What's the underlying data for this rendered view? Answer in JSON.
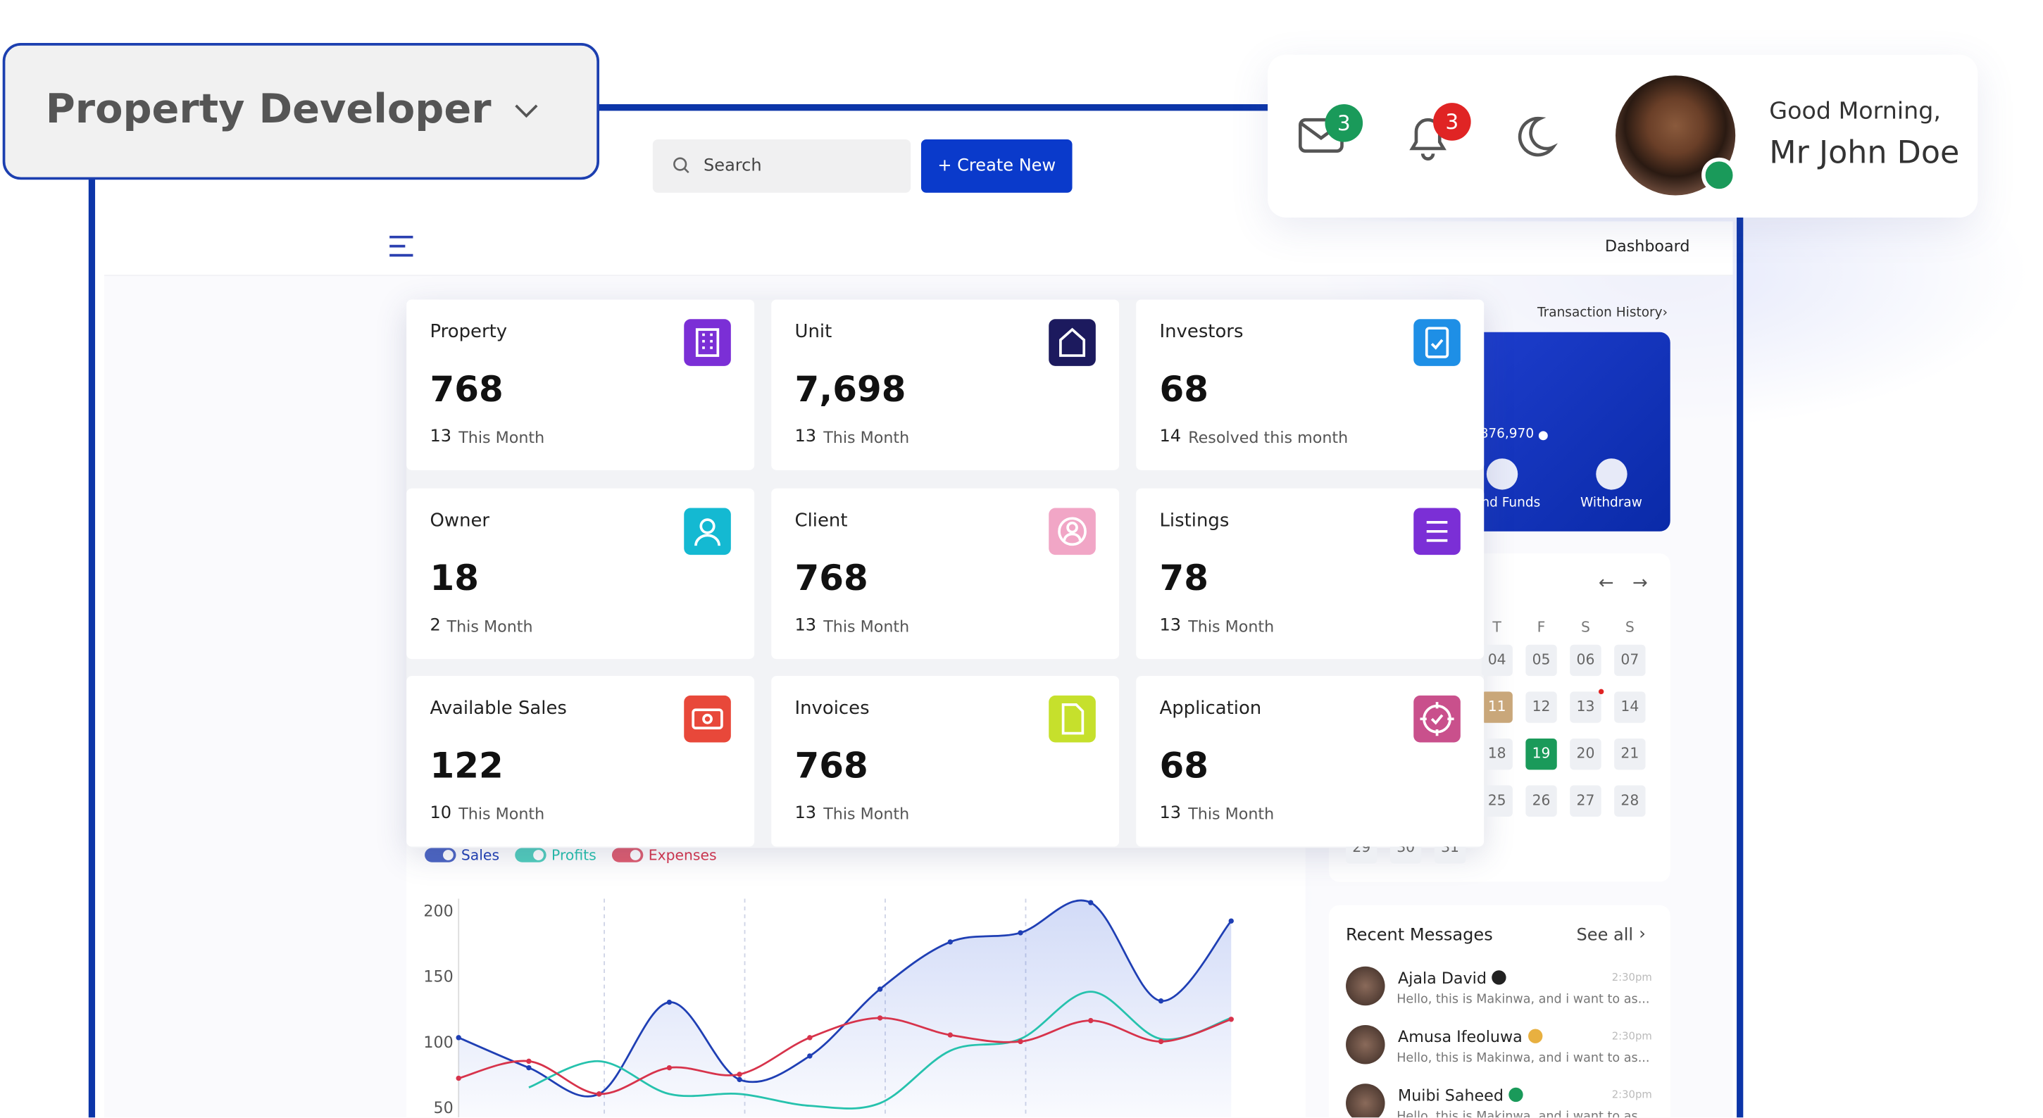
{
  "header": {
    "role_selector": "Property Developer",
    "search_placeholder": "Search",
    "create_button": "+ Create New",
    "mail_badge": "3",
    "notification_badge": "3",
    "greeting": "Good Morning,",
    "user_name": "Mr John Doe"
  },
  "breadcrumb": "Dashboard",
  "stats": [
    {
      "label": "Property",
      "value": "768",
      "count": "13",
      "note": "This Month",
      "icon_color": "#7b2fd6"
    },
    {
      "label": "Unit",
      "value": "7,698",
      "count": "13",
      "note": "This Month",
      "icon_color": "#1c1a5e"
    },
    {
      "label": "Investors",
      "value": "68",
      "count": "14",
      "note": "Resolved this month",
      "icon_color": "#1e8fe6"
    },
    {
      "label": "Owner",
      "value": "18",
      "count": "2",
      "note": "This Month",
      "icon_color": "#14b9d2"
    },
    {
      "label": "Client",
      "value": "768",
      "count": "13",
      "note": "This Month",
      "icon_color": "#f1a6c6"
    },
    {
      "label": "Listings",
      "value": "78",
      "count": "13",
      "note": "This Month",
      "icon_color": "#7b2fd6"
    },
    {
      "label": "Available Sales",
      "value": "122",
      "count": "10",
      "note": "This Month",
      "icon_color": "#e8483a"
    },
    {
      "label": "Invoices",
      "value": "768",
      "count": "13",
      "note": "This Month",
      "icon_color": "#c6e02c"
    },
    {
      "label": "Application",
      "value": "68",
      "count": "13",
      "note": "This Month",
      "icon_color": "#c9508c"
    }
  ],
  "wallet": {
    "link": "Transaction History›",
    "balance": "876,970",
    "actions": [
      "nd Funds",
      "Withdraw"
    ]
  },
  "calendar": {
    "weekdays": [
      "T",
      "F",
      "S",
      "S"
    ],
    "weeks": [
      [
        "04",
        "05",
        "06",
        "07"
      ],
      [
        "11",
        "12",
        "13",
        "14"
      ],
      [
        "18",
        "19",
        "20",
        "21"
      ],
      [
        "25",
        "26",
        "27",
        "28"
      ],
      [
        "29",
        "30",
        "31"
      ]
    ]
  },
  "chart": {
    "type": "line",
    "ylim": [
      50,
      210
    ],
    "yticks": [
      50,
      100,
      150,
      200
    ],
    "categories": [
      null,
      null,
      null,
      null,
      null,
      null,
      null,
      null,
      null,
      null,
      null,
      null
    ],
    "series": [
      {
        "name": "Sales",
        "color": "#1f3fb4",
        "values": [
          104,
          81,
          61,
          131,
          72,
          90,
          141,
          177,
          184,
          207,
          132,
          193
        ]
      },
      {
        "name": "Profits",
        "color": "#26c2ad",
        "values": [
          null,
          66,
          86,
          61,
          61,
          52,
          54,
          94,
          103,
          139,
          103,
          119
        ]
      },
      {
        "name": "Expenses",
        "color": "#d7334b",
        "values": [
          73,
          86,
          61,
          81,
          76,
          104,
          119,
          106,
          101,
          117,
          101,
          118
        ]
      }
    ]
  },
  "messages": {
    "title": "Recent Messages",
    "see_all": "See all",
    "items": [
      {
        "name": "Ajala David",
        "time": "2:30pm",
        "text": "Hello, this is Makinwa, and i want to as..."
      },
      {
        "name": "Amusa Ifeoluwa",
        "time": "2:30pm",
        "text": "Hello, this is Makinwa, and i want to as..."
      },
      {
        "name": "Muibi Saheed",
        "time": "2:30pm",
        "text": "Hello, this is Makinwa, and i want to as..."
      }
    ]
  }
}
